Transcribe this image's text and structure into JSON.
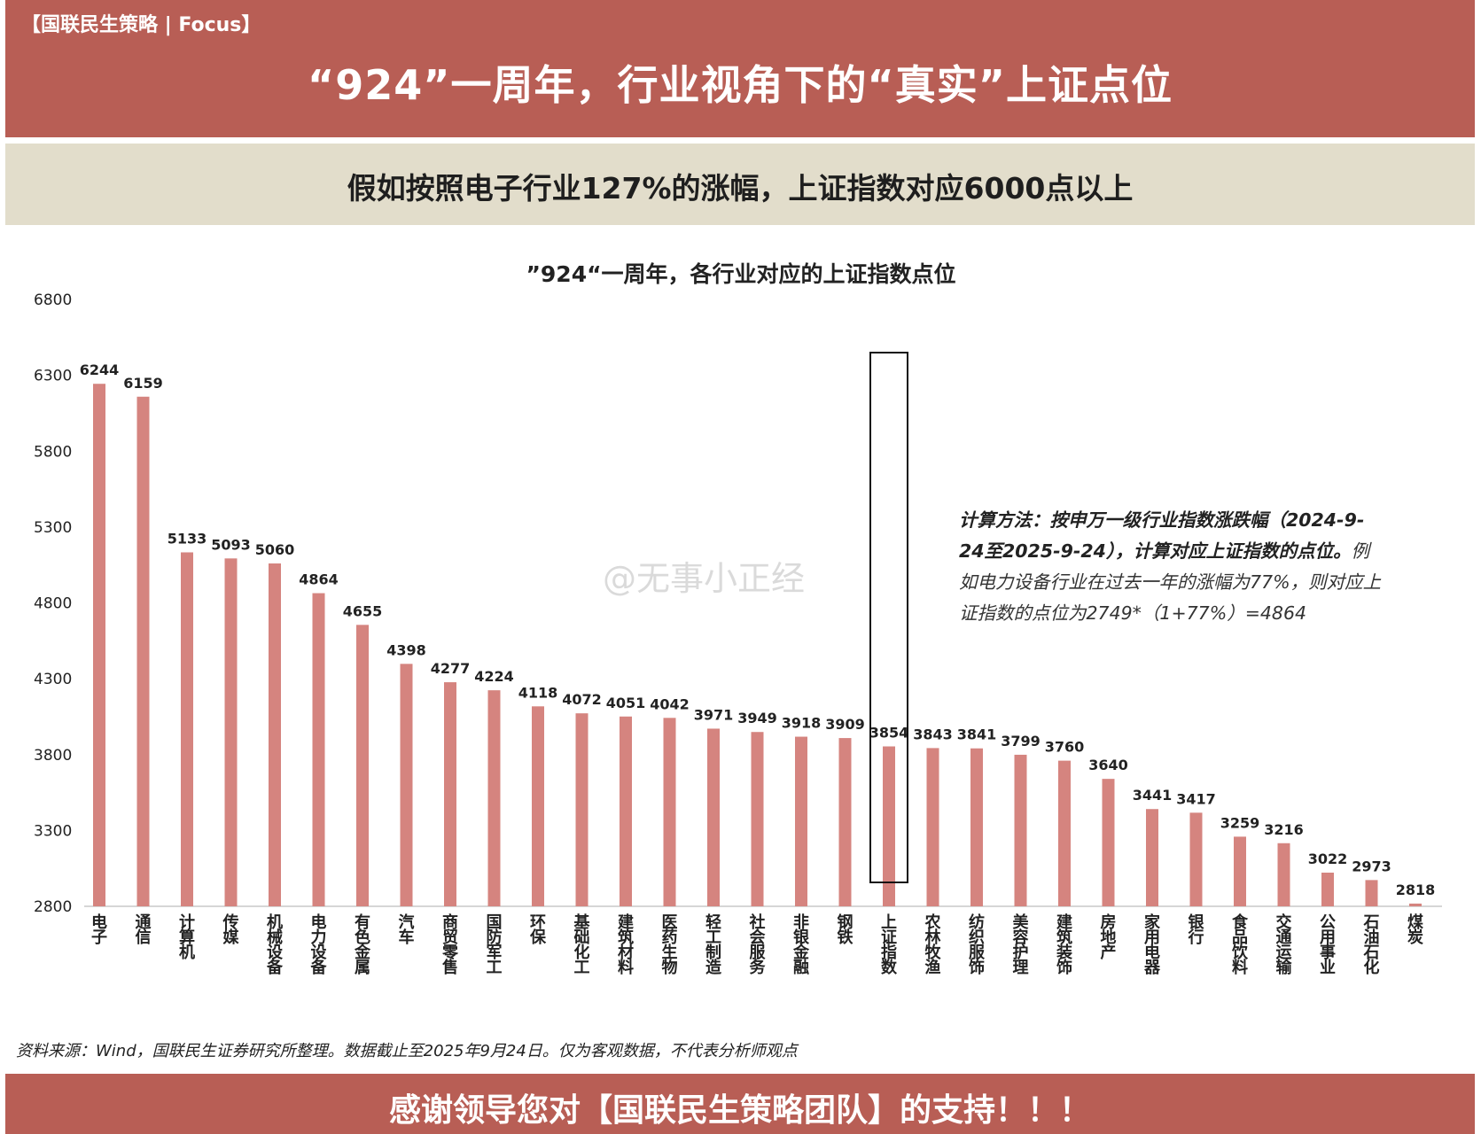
{
  "header": {
    "brand": "【国联民生策略 | Focus】",
    "title": "“924”一周年，行业视角下的“真实”上证点位"
  },
  "subtitle": "假如按照电子行业127%的涨幅，上证指数对应6000点以上",
  "note": {
    "bold": "计算方法：按申万一级行业指数涨跌幅（2024-9-24至2025-9-24），计算对应上证指数的点位。",
    "normal": "例如电力设备行业在过去一年的涨幅为77%，则对应上证指数的点位为2749*（1+77%）=4864"
  },
  "watermark": "@无事小正经",
  "source": "资料来源：Wind，国联民生证券研究所整理。数据截止至2025年9月24日。仅为客观数据，不代表分析师观点",
  "footer": {
    "thanks": "感谢领导您对【国联民生策略团队】的支持！！！"
  },
  "chart_data": {
    "type": "bar",
    "title": "”924“一周年，各行业对应的上证指数点位",
    "ylim": [
      2800,
      6800
    ],
    "yticks": [
      2800,
      3300,
      3800,
      4300,
      4800,
      5300,
      5800,
      6300,
      6800
    ],
    "bar_color": "#d5847f",
    "highlight_category": "上证指数",
    "categories": [
      "电子",
      "通信",
      "计算机",
      "传媒",
      "机械设备",
      "电力设备",
      "有色金属",
      "汽车",
      "商贸零售",
      "国防军工",
      "环保",
      "基础化工",
      "建筑材料",
      "医药生物",
      "轻工制造",
      "社会服务",
      "非银金融",
      "钢铁",
      "上证指数",
      "农林牧渔",
      "纺织服饰",
      "美容护理",
      "建筑装饰",
      "房地产",
      "家用电器",
      "银行",
      "食品饮料",
      "交通运输",
      "公用事业",
      "石油石化",
      "煤炭"
    ],
    "values": [
      6244,
      6159,
      5133,
      5093,
      5060,
      4864,
      4655,
      4398,
      4277,
      4224,
      4118,
      4072,
      4051,
      4042,
      3971,
      3949,
      3918,
      3909,
      3854,
      3843,
      3841,
      3799,
      3760,
      3640,
      3441,
      3417,
      3259,
      3216,
      3022,
      2973,
      2818
    ]
  }
}
